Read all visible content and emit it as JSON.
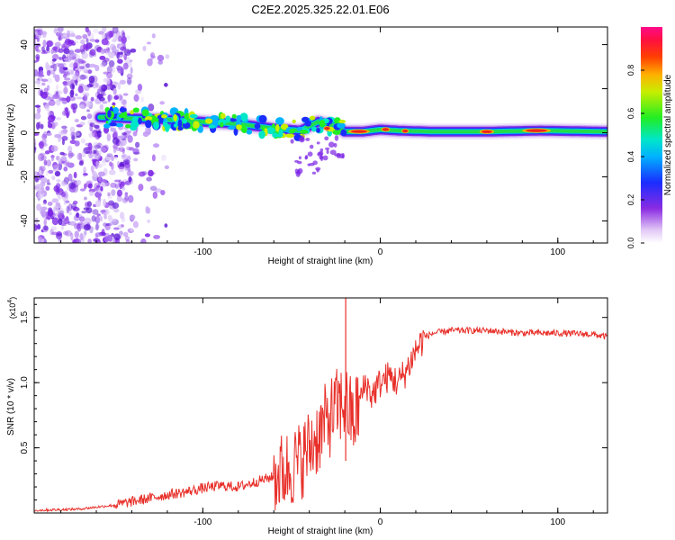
{
  "title": "C2E2.2025.325.22.01.E06",
  "colors": {
    "snr_line": "#e8302a",
    "spectrogram_scatter": "#7a22e6",
    "band_core": "#e82222"
  },
  "chart_data": [
    {
      "type": "heatmap",
      "name": "spectrogram",
      "xlabel": "Height of straight line (km)",
      "ylabel": "Frequency (Hz)",
      "xlim": [
        -195,
        128
      ],
      "ylim": [
        -50,
        48
      ],
      "xticks": [
        -100,
        0,
        100
      ],
      "xtick_labels": [
        "-100",
        "0",
        "100"
      ],
      "yticks": [
        -40,
        -20,
        0,
        20,
        40
      ],
      "ytick_labels": [
        "-40",
        "-20",
        "0",
        "20",
        "40"
      ],
      "colorbar": {
        "label": "Normalized spectral amplitude",
        "range": [
          0,
          1
        ],
        "ticks": [
          0.0,
          0.2,
          0.4,
          0.6,
          0.8
        ],
        "tick_labels": [
          "0.0",
          "0.2",
          "0.4",
          "0.6",
          "0.8"
        ],
        "colormap": "rainbow (white-violet-blue-cyan-green-yellow-red-magenta)"
      },
      "band_center": {
        "x": [
          -155,
          -140,
          -120,
          -100,
          -80,
          -60,
          -45,
          -35,
          -25,
          -20,
          -10,
          0,
          10,
          30,
          60,
          90,
          128
        ],
        "y": [
          7,
          6.5,
          6,
          5,
          4,
          2,
          1,
          5,
          3,
          0.5,
          0.5,
          1.5,
          1,
          0.5,
          0.5,
          1,
          0.5
        ]
      },
      "noise_region_x": [
        -195,
        -140
      ]
    },
    {
      "type": "line",
      "name": "snr",
      "xlabel": "Height of straight line (km)",
      "ylabel": "SNR (10 * v/v)",
      "y_multiplier": "(x10^4)",
      "y_multiplier_base": "(x10",
      "y_multiplier_exp": "4",
      "y_multiplier_close": ")",
      "xlim": [
        -195,
        128
      ],
      "ylim": [
        0,
        1.65
      ],
      "xticks": [
        -100,
        0,
        100
      ],
      "xtick_labels": [
        "-100",
        "0",
        "100"
      ],
      "yticks": [
        0.5,
        1.0,
        1.5
      ],
      "ytick_labels": [
        "0.5",
        "1.0",
        "1.5"
      ],
      "series": [
        {
          "name": "SNR",
          "x": [
            -195,
            -170,
            -150,
            -135,
            -120,
            -110,
            -100,
            -90,
            -80,
            -70,
            -60,
            -50,
            -45,
            -40,
            -35,
            -30,
            -25,
            -20,
            -15,
            -12,
            -8,
            -5,
            0,
            5,
            10,
            15,
            20,
            25,
            30,
            40,
            60,
            80,
            100,
            120,
            128
          ],
          "y": [
            0.02,
            0.03,
            0.06,
            0.1,
            0.14,
            0.16,
            0.19,
            0.21,
            0.2,
            0.24,
            0.28,
            0.35,
            0.4,
            0.5,
            0.6,
            0.7,
            0.8,
            0.85,
            0.7,
            0.85,
            1.0,
            0.9,
            1.0,
            1.05,
            1.0,
            1.1,
            1.25,
            1.35,
            1.38,
            1.4,
            1.4,
            1.38,
            1.38,
            1.37,
            1.35
          ]
        }
      ]
    }
  ]
}
